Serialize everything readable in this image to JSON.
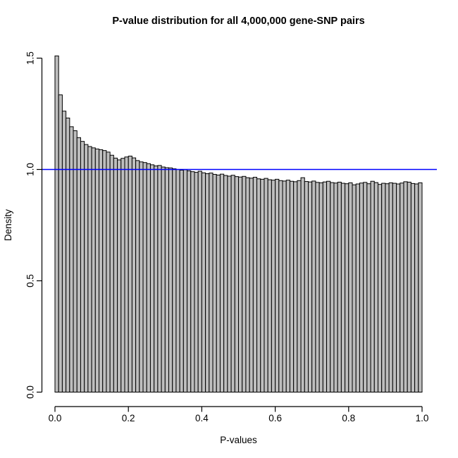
{
  "window": {
    "background": "#FFFFFF"
  },
  "chart_data": {
    "type": "bar",
    "subtype": "histogram",
    "title": "P-value distribution for all 4,000,000 gene-SNP pairs",
    "xlabel": "P-values",
    "ylabel": "Density",
    "xlim": [
      0,
      1
    ],
    "ylim": [
      0,
      1.5
    ],
    "x_ticks": [
      0.0,
      0.2,
      0.4,
      0.6,
      0.8,
      1.0
    ],
    "x_tick_labels": [
      "0.0",
      "0.2",
      "0.4",
      "0.6",
      "0.8",
      "1.0"
    ],
    "y_ticks": [
      0.0,
      0.5,
      1.0,
      1.5
    ],
    "y_tick_labels": [
      "0.0",
      "0.5",
      "1.0",
      "1.5"
    ],
    "grid": false,
    "legend": null,
    "bin_start": 0.0,
    "bin_width": 0.01,
    "values": [
      1.51,
      1.335,
      1.262,
      1.231,
      1.192,
      1.174,
      1.143,
      1.126,
      1.112,
      1.103,
      1.097,
      1.092,
      1.089,
      1.085,
      1.078,
      1.064,
      1.051,
      1.043,
      1.05,
      1.056,
      1.06,
      1.052,
      1.04,
      1.034,
      1.031,
      1.026,
      1.021,
      1.016,
      1.018,
      1.011,
      1.008,
      1.007,
      1.003,
      1.0,
      0.997,
      0.999,
      0.994,
      0.99,
      0.987,
      0.992,
      0.985,
      0.981,
      0.984,
      0.978,
      0.975,
      0.979,
      0.973,
      0.97,
      0.974,
      0.968,
      0.966,
      0.969,
      0.963,
      0.961,
      0.965,
      0.958,
      0.956,
      0.96,
      0.954,
      0.952,
      0.956,
      0.95,
      0.948,
      0.952,
      0.947,
      0.945,
      0.95,
      0.963,
      0.946,
      0.944,
      0.948,
      0.942,
      0.94,
      0.944,
      0.947,
      0.941,
      0.939,
      0.943,
      0.938,
      0.936,
      0.94,
      0.931,
      0.935,
      0.939,
      0.942,
      0.936,
      0.947,
      0.941,
      0.933,
      0.938,
      0.936,
      0.94,
      0.938,
      0.935,
      0.939,
      0.945,
      0.943,
      0.937,
      0.935,
      0.94
    ],
    "reference_line": {
      "y": 1.0,
      "color": "#0000FF"
    },
    "bar_fill": "#BEBEBE",
    "bar_stroke": "#000000",
    "axis_color": "#000000"
  }
}
